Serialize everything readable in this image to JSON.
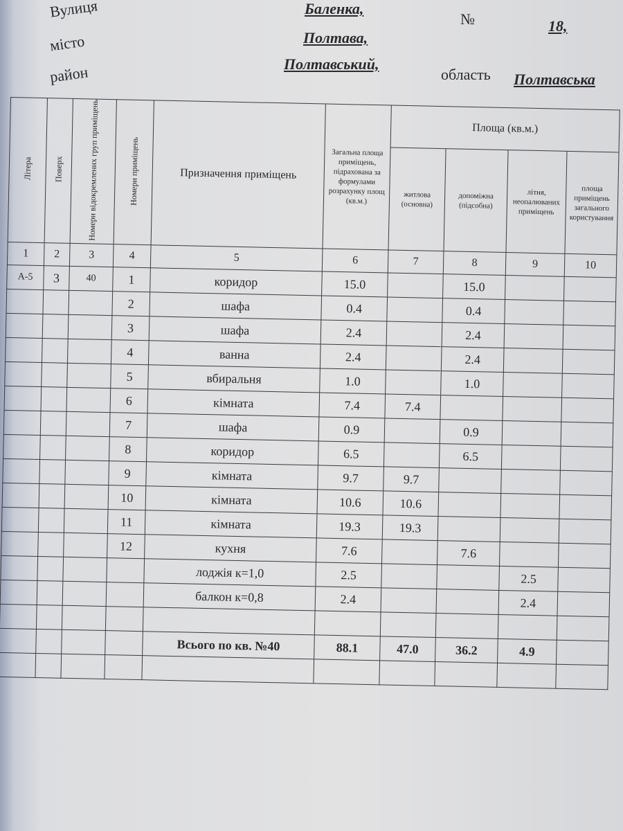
{
  "address": {
    "street_label": "Вулиця",
    "street": "Баленка,",
    "number_label": "№",
    "number": "18,",
    "city_label": "місто",
    "city": "Полтава,",
    "district_label": "район",
    "district": "Полтавський,",
    "region_label": "область",
    "region": "Полтавська"
  },
  "table": {
    "headers": {
      "c1": "Літера",
      "c2": "Поверх",
      "c3": "Номери відокремлених груп приміщень",
      "c4": "Номери приміщень",
      "c5": "Призначення приміщень",
      "c6": "Загальна площа приміщень, підрахована за формулами розрахунку площ (кв.м.)",
      "area_group": "Площа (кв.м.)",
      "c7": "житлова (основна)",
      "c8": "допоміжна (підсобна)",
      "c9": "літня, неопалюваних приміщень",
      "c10": "площа приміщень загального користування"
    },
    "col_numbers": [
      "1",
      "2",
      "3",
      "4",
      "5",
      "6",
      "7",
      "8",
      "9",
      "10"
    ],
    "rows": [
      [
        "А-5",
        "3",
        "40",
        "1",
        "коридор",
        "15.0",
        "",
        "15.0",
        "",
        ""
      ],
      [
        "",
        "",
        "",
        "2",
        "шафа",
        "0.4",
        "",
        "0.4",
        "",
        ""
      ],
      [
        "",
        "",
        "",
        "3",
        "шафа",
        "2.4",
        "",
        "2.4",
        "",
        ""
      ],
      [
        "",
        "",
        "",
        "4",
        "ванна",
        "2.4",
        "",
        "2.4",
        "",
        ""
      ],
      [
        "",
        "",
        "",
        "5",
        "вбиральня",
        "1.0",
        "",
        "1.0",
        "",
        ""
      ],
      [
        "",
        "",
        "",
        "6",
        "кімната",
        "7.4",
        "7.4",
        "",
        "",
        ""
      ],
      [
        "",
        "",
        "",
        "7",
        "шафа",
        "0.9",
        "",
        "0.9",
        "",
        ""
      ],
      [
        "",
        "",
        "",
        "8",
        "коридор",
        "6.5",
        "",
        "6.5",
        "",
        ""
      ],
      [
        "",
        "",
        "",
        "9",
        "кімната",
        "9.7",
        "9.7",
        "",
        "",
        ""
      ],
      [
        "",
        "",
        "",
        "10",
        "кімната",
        "10.6",
        "10.6",
        "",
        "",
        ""
      ],
      [
        "",
        "",
        "",
        "11",
        "кімната",
        "19.3",
        "19.3",
        "",
        "",
        ""
      ],
      [
        "",
        "",
        "",
        "12",
        "кухня",
        "7.6",
        "",
        "7.6",
        "",
        ""
      ],
      [
        "",
        "",
        "",
        "",
        "лоджія к=1,0",
        "2.5",
        "",
        "",
        "2.5",
        ""
      ],
      [
        "",
        "",
        "",
        "",
        "балкон к=0,8",
        "2.4",
        "",
        "",
        "2.4",
        ""
      ],
      [
        "",
        "",
        "",
        "",
        "",
        "",
        "",
        "",
        "",
        ""
      ]
    ],
    "total": {
      "label": "Всього по кв. №40",
      "c6": "88.1",
      "c7": "47.0",
      "c8": "36.2",
      "c9": "4.9",
      "c10": ""
    }
  }
}
